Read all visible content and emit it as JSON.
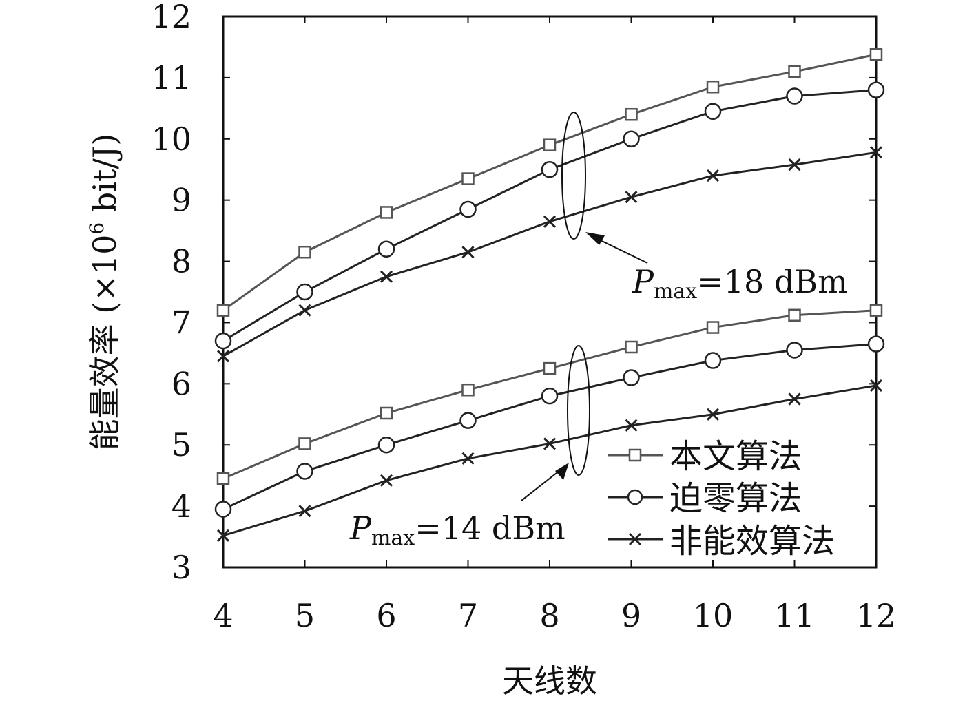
{
  "chart_data": {
    "type": "line",
    "xlabel": "天线数",
    "ylabel": "能量效率 (×10",
    "ylabel_exp": "6",
    "ylabel_unit": " bit/J)",
    "x": [
      4,
      5,
      6,
      7,
      8,
      9,
      10,
      11,
      12
    ],
    "xlim": [
      4,
      12
    ],
    "ylim": [
      3,
      12
    ],
    "yticks": [
      3,
      4,
      5,
      6,
      7,
      8,
      9,
      10,
      11,
      12
    ],
    "grid": false,
    "legend_position": "bottom-right",
    "series": [
      {
        "name": "本文算法",
        "group": "Pmax=18 dBm",
        "marker": "square",
        "color": "#555555",
        "values": [
          7.2,
          8.15,
          8.8,
          9.35,
          9.9,
          10.4,
          10.85,
          11.1,
          11.38
        ]
      },
      {
        "name": "迫零算法",
        "group": "Pmax=18 dBm",
        "marker": "circle",
        "color": "#222222",
        "values": [
          6.7,
          7.5,
          8.2,
          8.85,
          9.5,
          10.0,
          10.45,
          10.7,
          10.8
        ]
      },
      {
        "name": "非能效算法",
        "group": "Pmax=18 dBm",
        "marker": "x",
        "color": "#222222",
        "values": [
          6.45,
          7.2,
          7.75,
          8.15,
          8.65,
          9.05,
          9.4,
          9.58,
          9.78
        ]
      },
      {
        "name": "本文算法",
        "group": "Pmax=14 dBm",
        "marker": "square",
        "color": "#555555",
        "values": [
          4.45,
          5.02,
          5.52,
          5.9,
          6.25,
          6.6,
          6.92,
          7.12,
          7.2
        ]
      },
      {
        "name": "迫零算法",
        "group": "Pmax=14 dBm",
        "marker": "circle",
        "color": "#222222",
        "values": [
          3.95,
          4.57,
          5.0,
          5.4,
          5.8,
          6.1,
          6.38,
          6.55,
          6.65
        ]
      },
      {
        "name": "非能效算法",
        "group": "Pmax=14 dBm",
        "marker": "x",
        "color": "#222222",
        "values": [
          3.52,
          3.92,
          4.42,
          4.78,
          5.02,
          5.32,
          5.5,
          5.75,
          5.97
        ]
      }
    ],
    "annotations": [
      {
        "P": "P",
        "sub": "max",
        "rest": "=18 dBm"
      },
      {
        "P": "P",
        "sub": "max",
        "rest": "=14 dBm"
      }
    ],
    "legend": [
      {
        "label": "本文算法",
        "marker": "square",
        "color": "#555555"
      },
      {
        "label": "迫零算法",
        "marker": "circle",
        "color": "#222222"
      },
      {
        "label": "非能效算法",
        "marker": "x",
        "color": "#222222"
      }
    ]
  }
}
